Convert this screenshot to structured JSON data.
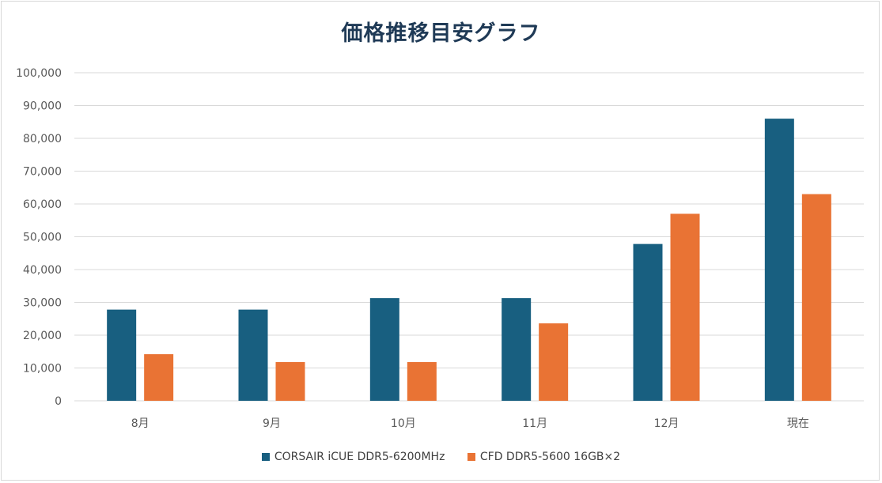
{
  "colors": {
    "series1": "#185f80",
    "series2": "#e97334",
    "grid": "#d9d9d9",
    "title": "#1f3a56"
  },
  "chart_data": {
    "type": "bar",
    "title": "価格推移目安グラフ",
    "xlabel": "",
    "ylabel": "",
    "categories": [
      "8月",
      "9月",
      "10月",
      "11月",
      "12月",
      "現在"
    ],
    "ylim": [
      0,
      100000
    ],
    "yticks": [
      "0",
      "10,000",
      "20,000",
      "30,000",
      "40,000",
      "50,000",
      "60,000",
      "70,000",
      "80,000",
      "90,000",
      "100,000"
    ],
    "grid": true,
    "legend_position": "bottom",
    "series": [
      {
        "name": "CORSAIR iCUE DDR5-6200MHz",
        "values": [
          27800,
          27800,
          31300,
          31300,
          47800,
          86000
        ]
      },
      {
        "name": "CFD DDR5-5600 16GB×2",
        "values": [
          14200,
          11800,
          11800,
          23600,
          57000,
          63000
        ]
      }
    ]
  }
}
